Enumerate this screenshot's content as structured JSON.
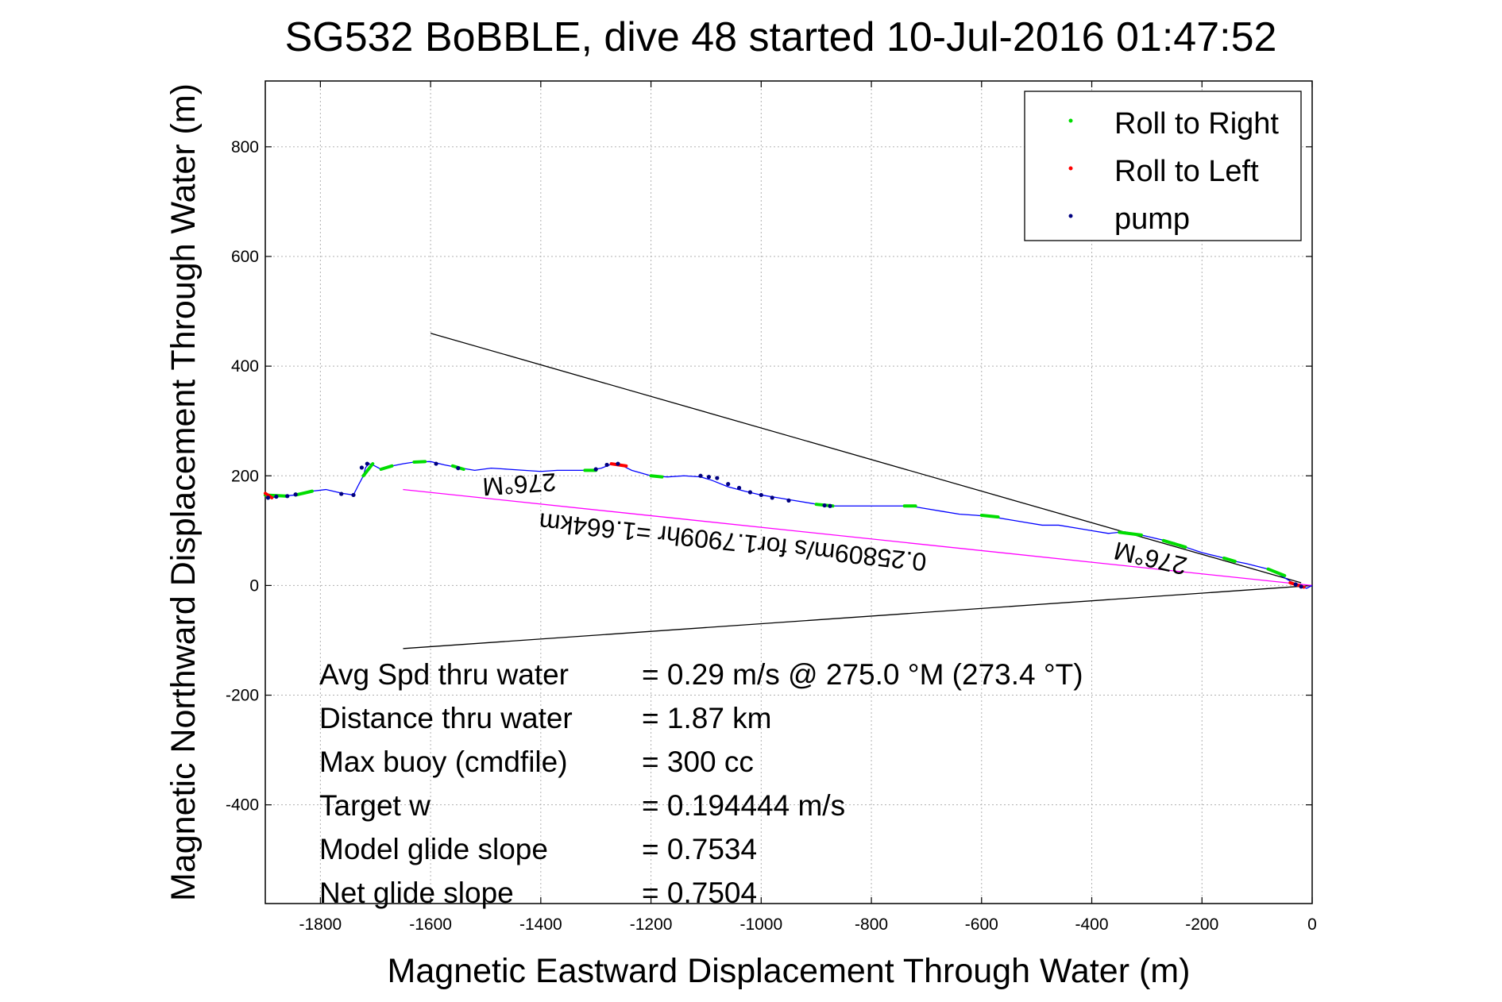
{
  "chart_data": {
    "type": "line",
    "title": "SG532 BoBBLE, dive 48 started 10-Jul-2016 01:47:52",
    "xlabel": "Magnetic Eastward Displacement Through Water (m)",
    "ylabel": "Magnetic Northward Displacement Through Water (m)",
    "xlim": [
      -1900,
      0
    ],
    "ylim": [
      -580,
      920
    ],
    "xticks": [
      -1800,
      -1600,
      -1400,
      -1200,
      -1000,
      -800,
      -600,
      -400,
      -200,
      0
    ],
    "yticks": [
      -400,
      -200,
      0,
      200,
      400,
      600,
      800
    ],
    "grid": true,
    "legend_position": "top-right",
    "legend": [
      {
        "label": "Roll to Right",
        "color": "#00dd00"
      },
      {
        "label": "Roll to Left",
        "color": "#ff0000"
      },
      {
        "label": "pump",
        "color": "#000080"
      }
    ],
    "track": {
      "color": "#0000ff",
      "x": [
        -1900,
        -1890,
        -1870,
        -1845,
        -1815,
        -1790,
        -1760,
        -1740,
        -1730,
        -1722,
        -1718,
        -1712,
        -1705,
        -1690,
        -1670,
        -1650,
        -1630,
        -1600,
        -1575,
        -1550,
        -1520,
        -1490,
        -1460,
        -1430,
        -1400,
        -1370,
        -1340,
        -1310,
        -1290,
        -1270,
        -1255,
        -1235,
        -1200,
        -1170,
        -1140,
        -1110,
        -1090,
        -1060,
        -1030,
        -1000,
        -970,
        -940,
        -910,
        -880,
        -850,
        -820,
        -790,
        -760,
        -730,
        -700,
        -670,
        -640,
        -610,
        -580,
        -550,
        -520,
        -490,
        -460,
        -430,
        -400,
        -370,
        -340,
        -310,
        -280,
        -250,
        -230,
        -200,
        -180,
        -160,
        -140,
        -120,
        -100,
        -80,
        -60,
        -40,
        -25,
        -10,
        0
      ],
      "y": [
        165,
        160,
        163,
        165,
        172,
        175,
        168,
        165,
        185,
        200,
        215,
        222,
        220,
        212,
        218,
        222,
        225,
        226,
        220,
        215,
        210,
        214,
        212,
        210,
        208,
        210,
        210,
        210,
        214,
        222,
        220,
        210,
        200,
        198,
        200,
        198,
        192,
        180,
        172,
        165,
        160,
        155,
        150,
        145,
        145,
        145,
        145,
        145,
        145,
        140,
        135,
        130,
        128,
        125,
        120,
        115,
        110,
        110,
        105,
        100,
        95,
        98,
        92,
        85,
        78,
        70,
        60,
        55,
        50,
        44,
        40,
        35,
        30,
        20,
        8,
        0,
        -5,
        0
      ]
    },
    "roll_right_segments": [
      [
        [
          -1900,
          165
        ],
        [
          -1860,
          163
        ]
      ],
      [
        [
          -1845,
          165
        ],
        [
          -1815,
          172
        ]
      ],
      [
        [
          -1722,
          200
        ],
        [
          -1705,
          222
        ]
      ],
      [
        [
          -1690,
          212
        ],
        [
          -1670,
          218
        ]
      ],
      [
        [
          -1630,
          225
        ],
        [
          -1610,
          226
        ]
      ],
      [
        [
          -1560,
          218
        ],
        [
          -1540,
          212
        ]
      ],
      [
        [
          -1320,
          210
        ],
        [
          -1300,
          210
        ]
      ],
      [
        [
          -1200,
          200
        ],
        [
          -1180,
          198
        ]
      ],
      [
        [
          -900,
          148
        ],
        [
          -870,
          145
        ]
      ],
      [
        [
          -740,
          145
        ],
        [
          -720,
          145
        ]
      ],
      [
        [
          -600,
          128
        ],
        [
          -570,
          125
        ]
      ],
      [
        [
          -350,
          97
        ],
        [
          -310,
          92
        ]
      ],
      [
        [
          -270,
          82
        ],
        [
          -230,
          70
        ]
      ],
      [
        [
          -160,
          50
        ],
        [
          -140,
          44
        ]
      ],
      [
        [
          -80,
          30
        ],
        [
          -50,
          18
        ]
      ]
    ],
    "roll_left_segments": [
      [
        [
          -1900,
          168
        ],
        [
          -1888,
          160
        ]
      ],
      [
        [
          -1272,
          222
        ],
        [
          -1245,
          218
        ]
      ],
      [
        [
          -40,
          5
        ],
        [
          -15,
          -3
        ]
      ]
    ],
    "pump_points": [
      [
        -1895,
        160
      ],
      [
        -1880,
        162
      ],
      [
        -1860,
        163
      ],
      [
        -1845,
        166
      ],
      [
        -1762,
        167
      ],
      [
        -1740,
        165
      ],
      [
        -1725,
        215
      ],
      [
        -1715,
        222
      ],
      [
        -1590,
        222
      ],
      [
        -1550,
        214
      ],
      [
        -1300,
        212
      ],
      [
        -1280,
        220
      ],
      [
        -1260,
        222
      ],
      [
        -1110,
        200
      ],
      [
        -1095,
        198
      ],
      [
        -1080,
        196
      ],
      [
        -1060,
        185
      ],
      [
        -1040,
        178
      ],
      [
        -1020,
        170
      ],
      [
        -1000,
        165
      ],
      [
        -980,
        160
      ],
      [
        -950,
        155
      ],
      [
        -885,
        146
      ],
      [
        -875,
        145
      ],
      [
        -30,
        2
      ],
      [
        -20,
        -2
      ]
    ],
    "lines": [
      {
        "color": "#000000",
        "from": [
          -1600,
          460
        ],
        "to": [
          -20,
          5
        ]
      },
      {
        "color": "#000000",
        "from": [
          -1650,
          -115
        ],
        "to": [
          0,
          0
        ]
      },
      {
        "color": "#ff00ff",
        "from": [
          -1650,
          175
        ],
        "to": [
          0,
          0
        ]
      }
    ],
    "annotations": [
      {
        "text": "276°M",
        "x": -1440,
        "y": 200,
        "rotation": 176
      },
      {
        "text": "0.25809m/s for1.7909hr =1.664km",
        "x": -1050,
        "y": 95,
        "rotation": 186
      },
      {
        "text": "276°M",
        "x": -290,
        "y": 65,
        "rotation": 193
      }
    ],
    "stats": [
      {
        "label": "Avg Spd thru water",
        "value": "=  0.29 m/s @ 275.0 °M (273.4 °T)"
      },
      {
        "label": "Distance thru water",
        "value": "=  1.87 km"
      },
      {
        "label": "Max buoy (cmdfile)",
        "value": "= 300 cc"
      },
      {
        "label": "Target w",
        "value": "= 0.194444 m/s"
      },
      {
        "label": "Model glide slope",
        "value": "= 0.7534"
      },
      {
        "label": "Net glide slope",
        "value": "= 0.7504"
      }
    ]
  }
}
